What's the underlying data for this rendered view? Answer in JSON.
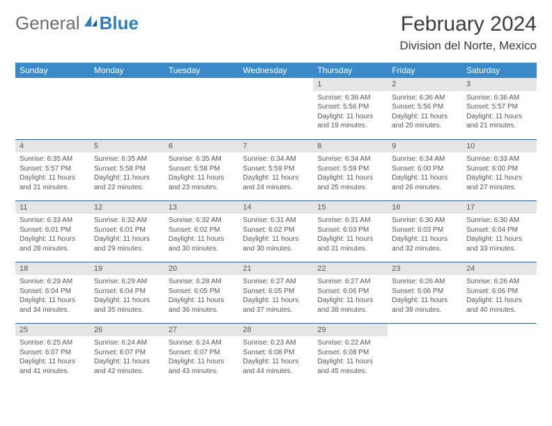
{
  "header": {
    "logo_general": "General",
    "logo_blue": "Blue",
    "month_title": "February 2024",
    "location": "Division del Norte, Mexico"
  },
  "calendar": {
    "header_bg": "#3a8ac9",
    "header_text": "#ffffff",
    "daynum_bg": "#e5e5e5",
    "border_color": "#2f5f8f",
    "days": [
      "Sunday",
      "Monday",
      "Tuesday",
      "Wednesday",
      "Thursday",
      "Friday",
      "Saturday"
    ],
    "weeks": [
      [
        null,
        null,
        null,
        null,
        {
          "n": "1",
          "sunrise": "Sunrise: 6:36 AM",
          "sunset": "Sunset: 5:56 PM",
          "daylight": "Daylight: 11 hours and 19 minutes."
        },
        {
          "n": "2",
          "sunrise": "Sunrise: 6:36 AM",
          "sunset": "Sunset: 5:56 PM",
          "daylight": "Daylight: 11 hours and 20 minutes."
        },
        {
          "n": "3",
          "sunrise": "Sunrise: 6:36 AM",
          "sunset": "Sunset: 5:57 PM",
          "daylight": "Daylight: 11 hours and 21 minutes."
        }
      ],
      [
        {
          "n": "4",
          "sunrise": "Sunrise: 6:35 AM",
          "sunset": "Sunset: 5:57 PM",
          "daylight": "Daylight: 11 hours and 21 minutes."
        },
        {
          "n": "5",
          "sunrise": "Sunrise: 6:35 AM",
          "sunset": "Sunset: 5:58 PM",
          "daylight": "Daylight: 11 hours and 22 minutes."
        },
        {
          "n": "6",
          "sunrise": "Sunrise: 6:35 AM",
          "sunset": "Sunset: 5:58 PM",
          "daylight": "Daylight: 11 hours and 23 minutes."
        },
        {
          "n": "7",
          "sunrise": "Sunrise: 6:34 AM",
          "sunset": "Sunset: 5:59 PM",
          "daylight": "Daylight: 11 hours and 24 minutes."
        },
        {
          "n": "8",
          "sunrise": "Sunrise: 6:34 AM",
          "sunset": "Sunset: 5:59 PM",
          "daylight": "Daylight: 11 hours and 25 minutes."
        },
        {
          "n": "9",
          "sunrise": "Sunrise: 6:34 AM",
          "sunset": "Sunset: 6:00 PM",
          "daylight": "Daylight: 11 hours and 26 minutes."
        },
        {
          "n": "10",
          "sunrise": "Sunrise: 6:33 AM",
          "sunset": "Sunset: 6:00 PM",
          "daylight": "Daylight: 11 hours and 27 minutes."
        }
      ],
      [
        {
          "n": "11",
          "sunrise": "Sunrise: 6:33 AM",
          "sunset": "Sunset: 6:01 PM",
          "daylight": "Daylight: 11 hours and 28 minutes."
        },
        {
          "n": "12",
          "sunrise": "Sunrise: 6:32 AM",
          "sunset": "Sunset: 6:01 PM",
          "daylight": "Daylight: 11 hours and 29 minutes."
        },
        {
          "n": "13",
          "sunrise": "Sunrise: 6:32 AM",
          "sunset": "Sunset: 6:02 PM",
          "daylight": "Daylight: 11 hours and 30 minutes."
        },
        {
          "n": "14",
          "sunrise": "Sunrise: 6:31 AM",
          "sunset": "Sunset: 6:02 PM",
          "daylight": "Daylight: 11 hours and 30 minutes."
        },
        {
          "n": "15",
          "sunrise": "Sunrise: 6:31 AM",
          "sunset": "Sunset: 6:03 PM",
          "daylight": "Daylight: 11 hours and 31 minutes."
        },
        {
          "n": "16",
          "sunrise": "Sunrise: 6:30 AM",
          "sunset": "Sunset: 6:03 PM",
          "daylight": "Daylight: 11 hours and 32 minutes."
        },
        {
          "n": "17",
          "sunrise": "Sunrise: 6:30 AM",
          "sunset": "Sunset: 6:04 PM",
          "daylight": "Daylight: 11 hours and 33 minutes."
        }
      ],
      [
        {
          "n": "18",
          "sunrise": "Sunrise: 6:29 AM",
          "sunset": "Sunset: 6:04 PM",
          "daylight": "Daylight: 11 hours and 34 minutes."
        },
        {
          "n": "19",
          "sunrise": "Sunrise: 6:29 AM",
          "sunset": "Sunset: 6:04 PM",
          "daylight": "Daylight: 11 hours and 35 minutes."
        },
        {
          "n": "20",
          "sunrise": "Sunrise: 6:28 AM",
          "sunset": "Sunset: 6:05 PM",
          "daylight": "Daylight: 11 hours and 36 minutes."
        },
        {
          "n": "21",
          "sunrise": "Sunrise: 6:27 AM",
          "sunset": "Sunset: 6:05 PM",
          "daylight": "Daylight: 11 hours and 37 minutes."
        },
        {
          "n": "22",
          "sunrise": "Sunrise: 6:27 AM",
          "sunset": "Sunset: 6:06 PM",
          "daylight": "Daylight: 11 hours and 38 minutes."
        },
        {
          "n": "23",
          "sunrise": "Sunrise: 6:26 AM",
          "sunset": "Sunset: 6:06 PM",
          "daylight": "Daylight: 11 hours and 39 minutes."
        },
        {
          "n": "24",
          "sunrise": "Sunrise: 6:26 AM",
          "sunset": "Sunset: 6:06 PM",
          "daylight": "Daylight: 11 hours and 40 minutes."
        }
      ],
      [
        {
          "n": "25",
          "sunrise": "Sunrise: 6:25 AM",
          "sunset": "Sunset: 6:07 PM",
          "daylight": "Daylight: 11 hours and 41 minutes."
        },
        {
          "n": "26",
          "sunrise": "Sunrise: 6:24 AM",
          "sunset": "Sunset: 6:07 PM",
          "daylight": "Daylight: 11 hours and 42 minutes."
        },
        {
          "n": "27",
          "sunrise": "Sunrise: 6:24 AM",
          "sunset": "Sunset: 6:07 PM",
          "daylight": "Daylight: 11 hours and 43 minutes."
        },
        {
          "n": "28",
          "sunrise": "Sunrise: 6:23 AM",
          "sunset": "Sunset: 6:08 PM",
          "daylight": "Daylight: 11 hours and 44 minutes."
        },
        {
          "n": "29",
          "sunrise": "Sunrise: 6:22 AM",
          "sunset": "Sunset: 6:08 PM",
          "daylight": "Daylight: 11 hours and 45 minutes."
        },
        null,
        null
      ]
    ]
  }
}
